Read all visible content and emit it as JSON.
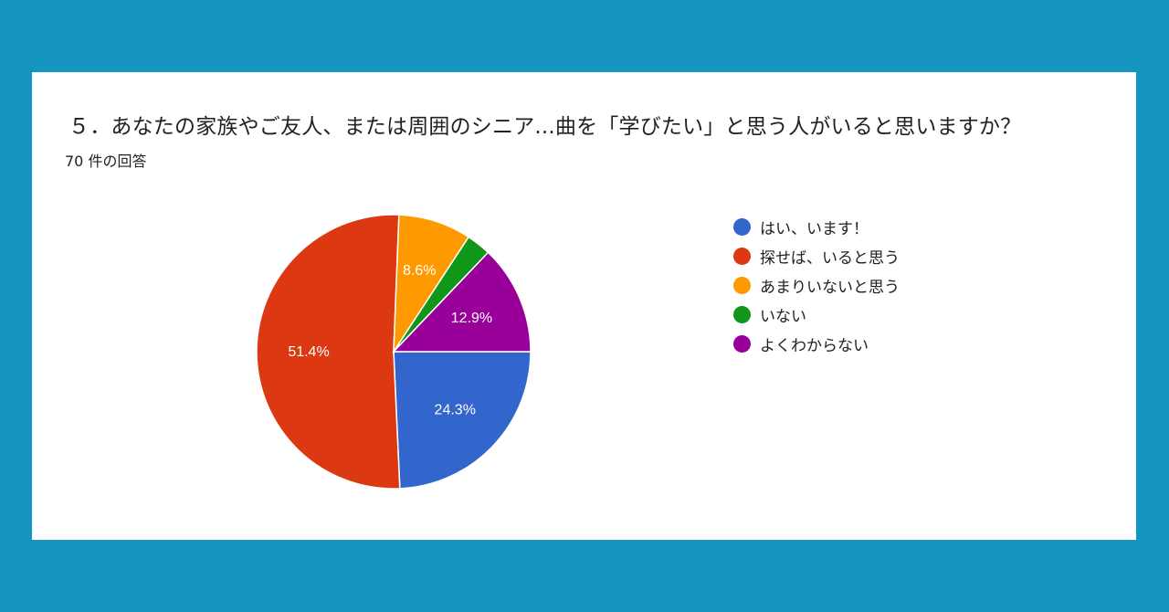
{
  "question_title": "５．あなたの家族やご友人、または周囲のシニア...曲を「学びたい」と思う人がいると思いますか？",
  "response_count": "70 件の回答",
  "chart_data": {
    "type": "pie",
    "title": "５．あなたの家族やご友人、または周囲のシニア...曲を「学びたい」と思う人がいると思いますか？",
    "total_responses": 70,
    "legend_position": "right",
    "slices": [
      {
        "label": "はい、います！",
        "value": 24.3,
        "display": "24.3%",
        "color": "#3366cc"
      },
      {
        "label": "探せば、いると思う",
        "value": 51.4,
        "display": "51.4%",
        "color": "#dc3912"
      },
      {
        "label": "あまりいないと思う",
        "value": 8.6,
        "display": "8.6%",
        "color": "#ff9900"
      },
      {
        "label": "いない",
        "value": 2.9,
        "display": "",
        "color": "#109618"
      },
      {
        "label": "よくわからない",
        "value": 12.9,
        "display": "12.9%",
        "color": "#990099"
      }
    ]
  }
}
